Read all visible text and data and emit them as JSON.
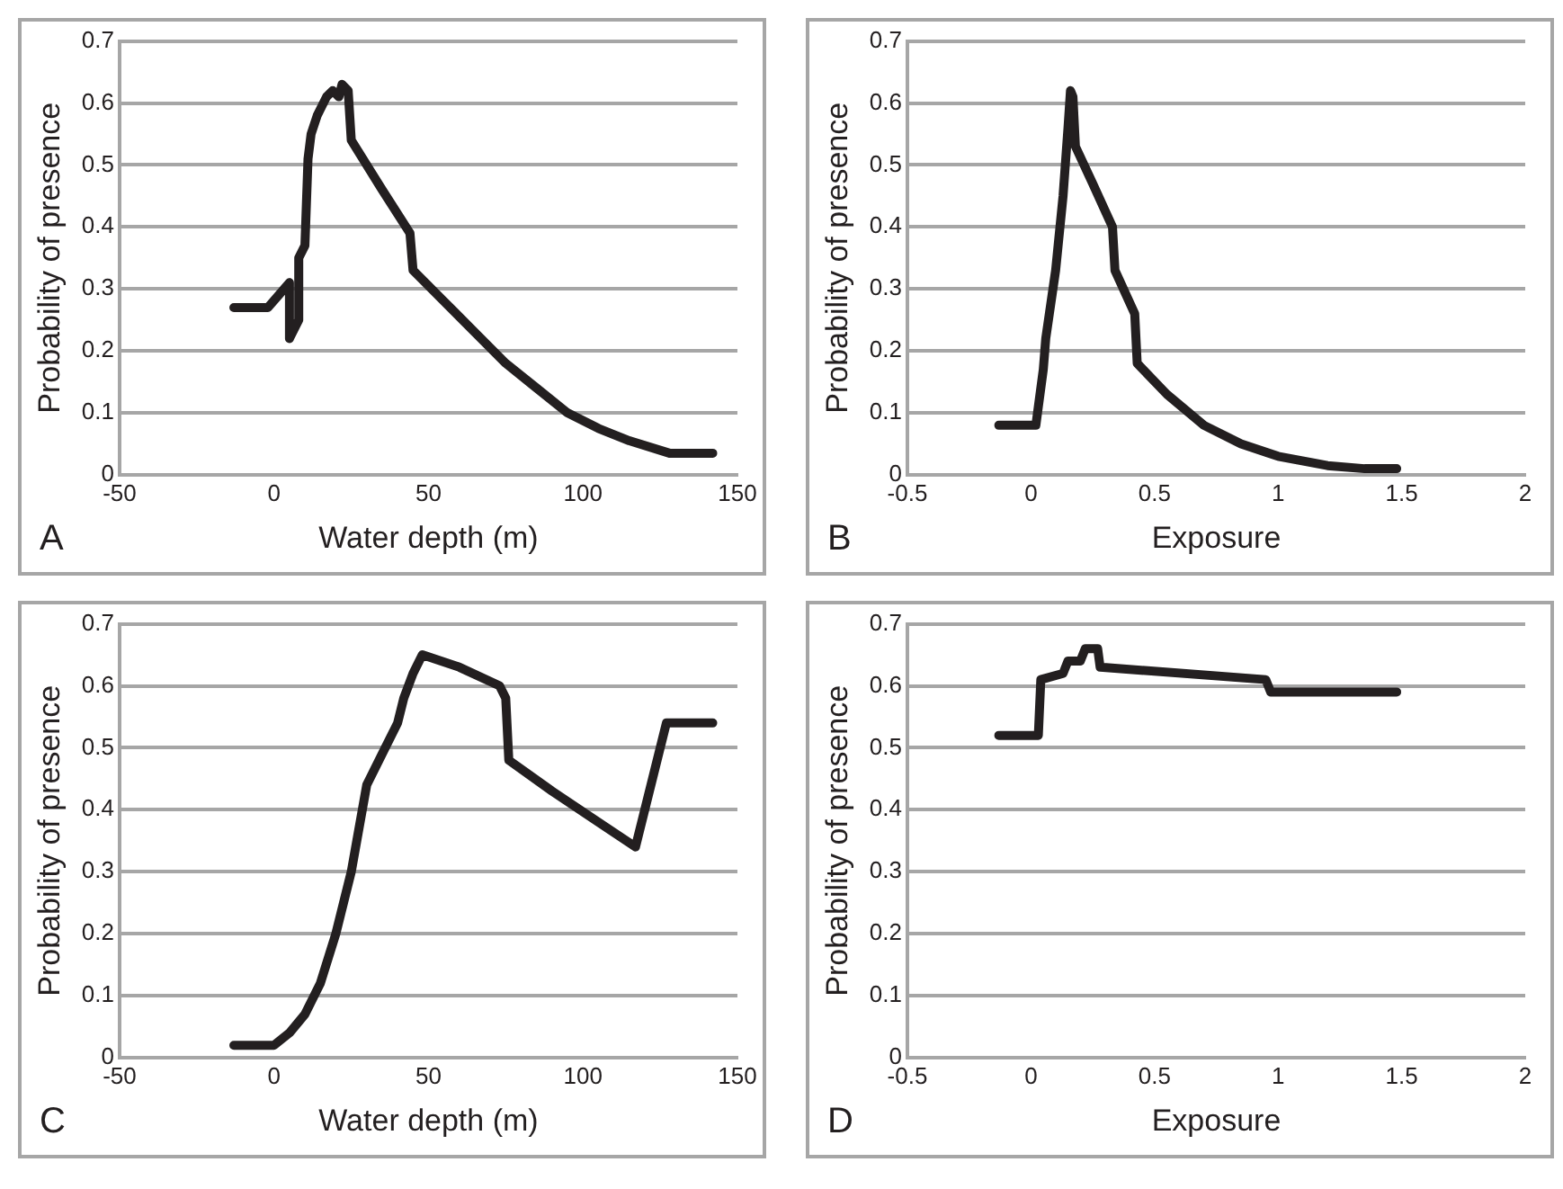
{
  "chart_data": [
    {
      "type": "line",
      "annotations": [
        "A"
      ],
      "xlabel": "Water depth (m)",
      "ylabel": "Probability of presence",
      "xlim": [
        -50,
        150
      ],
      "xticks": [
        -50,
        0,
        50,
        100,
        150
      ],
      "ylim": [
        0,
        0.7
      ],
      "yticks": [
        0,
        0.1,
        0.2,
        0.3,
        0.4,
        0.5,
        0.6,
        0.7
      ],
      "grid": "y",
      "legend": false,
      "series": [
        {
          "color": "#231f20",
          "x": [
            -13,
            -2,
            5,
            5,
            8,
            8,
            10,
            11,
            12,
            14,
            17,
            19,
            21,
            22,
            24,
            25,
            35,
            44,
            45,
            55,
            65,
            75,
            85,
            95,
            105,
            115,
            128,
            142
          ],
          "values": [
            0.27,
            0.27,
            0.31,
            0.22,
            0.25,
            0.35,
            0.37,
            0.51,
            0.55,
            0.58,
            0.61,
            0.62,
            0.61,
            0.63,
            0.62,
            0.54,
            0.46,
            0.39,
            0.33,
            0.28,
            0.23,
            0.18,
            0.14,
            0.1,
            0.075,
            0.055,
            0.035,
            0.035
          ]
        }
      ]
    },
    {
      "type": "line",
      "annotations": [
        "B"
      ],
      "xlabel": "Exposure",
      "ylabel": "Probability of presence",
      "xlim": [
        -0.5,
        2
      ],
      "xticks": [
        -0.5,
        0,
        0.5,
        1,
        1.5,
        2
      ],
      "ylim": [
        0,
        0.7
      ],
      "yticks": [
        0,
        0.1,
        0.2,
        0.3,
        0.4,
        0.5,
        0.6,
        0.7
      ],
      "grid": "y",
      "legend": false,
      "series": [
        {
          "color": "#231f20",
          "x": [
            -0.13,
            0.02,
            0.03,
            0.05,
            0.06,
            0.1,
            0.13,
            0.15,
            0.16,
            0.17,
            0.18,
            0.25,
            0.33,
            0.34,
            0.42,
            0.43,
            0.55,
            0.7,
            0.85,
            1,
            1.2,
            1.35,
            1.48
          ],
          "values": [
            0.08,
            0.08,
            0.11,
            0.17,
            0.22,
            0.33,
            0.45,
            0.56,
            0.62,
            0.61,
            0.53,
            0.47,
            0.4,
            0.33,
            0.26,
            0.18,
            0.13,
            0.08,
            0.05,
            0.03,
            0.015,
            0.01,
            0.01
          ]
        }
      ]
    },
    {
      "type": "line",
      "annotations": [
        "C"
      ],
      "xlabel": "Water depth (m)",
      "ylabel": "Probability of presence",
      "xlim": [
        -50,
        150
      ],
      "xticks": [
        -50,
        0,
        50,
        100,
        150
      ],
      "ylim": [
        0,
        0.7
      ],
      "yticks": [
        0,
        0.1,
        0.2,
        0.3,
        0.4,
        0.5,
        0.6,
        0.7
      ],
      "grid": "y",
      "legend": false,
      "series": [
        {
          "color": "#231f20",
          "x": [
            -13,
            0,
            5,
            10,
            15,
            20,
            25,
            30,
            35,
            40,
            42,
            45,
            48,
            60,
            73,
            75,
            76,
            90,
            105,
            117,
            127,
            142
          ],
          "values": [
            0.02,
            0.02,
            0.04,
            0.07,
            0.12,
            0.2,
            0.3,
            0.44,
            0.49,
            0.54,
            0.58,
            0.62,
            0.65,
            0.63,
            0.6,
            0.58,
            0.48,
            0.43,
            0.38,
            0.34,
            0.54,
            0.54
          ]
        }
      ]
    },
    {
      "type": "line",
      "annotations": [
        "D"
      ],
      "xlabel": "Exposure",
      "ylabel": "Probability of presence",
      "xlim": [
        -0.5,
        2
      ],
      "xticks": [
        -0.5,
        0,
        0.5,
        1,
        1.5,
        2
      ],
      "ylim": [
        0,
        0.7
      ],
      "yticks": [
        0,
        0.1,
        0.2,
        0.3,
        0.4,
        0.5,
        0.6,
        0.7
      ],
      "grid": "y",
      "legend": false,
      "series": [
        {
          "color": "#231f20",
          "x": [
            -0.13,
            0.03,
            0.04,
            0.13,
            0.15,
            0.2,
            0.22,
            0.27,
            0.28,
            0.95,
            0.97,
            1.48
          ],
          "values": [
            0.52,
            0.52,
            0.61,
            0.62,
            0.64,
            0.64,
            0.66,
            0.66,
            0.63,
            0.61,
            0.59,
            0.59
          ]
        }
      ]
    }
  ]
}
